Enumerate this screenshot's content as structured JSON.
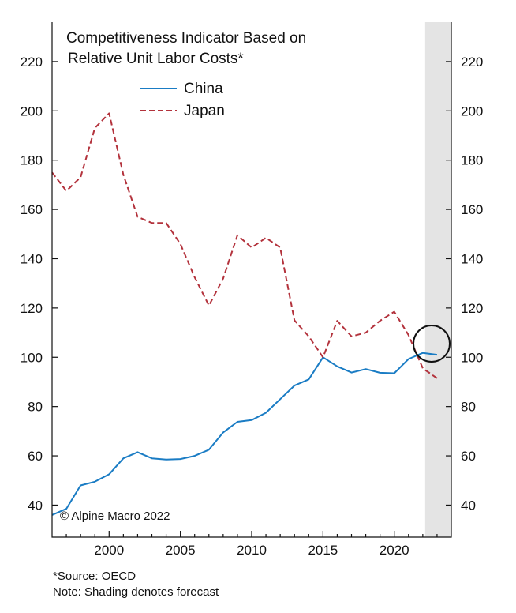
{
  "chart_data": {
    "type": "line",
    "title": "Competitiveness Indicator Based on",
    "subtitle": "Relative Unit Labor Costs*",
    "xlim": [
      1996,
      2024
    ],
    "ylim": [
      27,
      236
    ],
    "x_ticks": [
      2000,
      2005,
      2010,
      2015,
      2020
    ],
    "y_ticks": [
      40,
      60,
      80,
      100,
      120,
      140,
      160,
      180,
      200,
      220
    ],
    "forecast_region": [
      2022,
      2024
    ],
    "legend_position": "top-left",
    "grid": false,
    "series": [
      {
        "name": "China",
        "color": "#1a7cc4",
        "style": "solid",
        "x": [
          1996,
          1997,
          1998,
          1999,
          2000,
          2001,
          2002,
          2003,
          2004,
          2005,
          2006,
          2007,
          2008,
          2009,
          2010,
          2011,
          2012,
          2013,
          2014,
          2015,
          2016,
          2017,
          2018,
          2019,
          2020,
          2021,
          2022,
          2023
        ],
        "values": [
          36,
          38.5,
          48,
          49.5,
          52.5,
          59,
          61.5,
          59,
          58.5,
          58.7,
          60,
          62.5,
          69.5,
          73.8,
          74.5,
          77.5,
          83,
          88.5,
          91,
          100,
          96.3,
          93.8,
          95.2,
          93.7,
          93.5,
          99.3,
          101.8,
          101
        ]
      },
      {
        "name": "Japan",
        "color": "#b3323c",
        "style": "dashed",
        "x": [
          1996,
          1997,
          1998,
          1999,
          2000,
          2001,
          2002,
          2003,
          2004,
          2005,
          2006,
          2007,
          2008,
          2009,
          2010,
          2011,
          2012,
          2013,
          2014,
          2015,
          2016,
          2017,
          2018,
          2019,
          2020,
          2021,
          2022,
          2023
        ],
        "values": [
          175,
          167.5,
          173,
          193,
          199,
          174,
          157,
          154.5,
          154.5,
          146,
          132.5,
          121,
          132,
          149.5,
          144.5,
          148.5,
          144.5,
          115,
          108.5,
          100,
          114.8,
          108.5,
          110,
          114.8,
          118.5,
          109,
          95.5,
          91.5
        ]
      }
    ]
  },
  "annotations": {
    "copyright": "© Alpine Macro 2022",
    "source_note": "*Source: OECD",
    "shading_note": "Note: Shading denotes forecast"
  },
  "colors": {
    "forecast_shade": "#e4e4e4",
    "axis": "#111111",
    "circle": "#111111"
  }
}
